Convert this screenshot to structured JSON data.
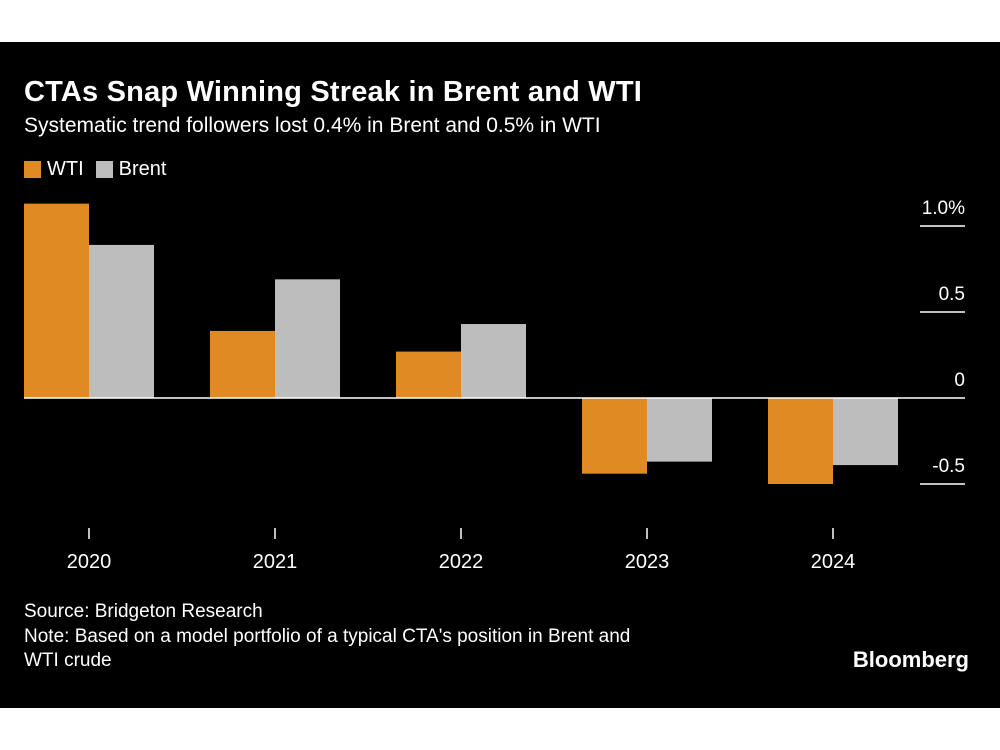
{
  "title": "CTAs Snap Winning Streak in Brent and WTI",
  "subtitle": "Systematic trend followers lost 0.4% in Brent and 0.5% in WTI",
  "source": "Source: Bridgeton Research",
  "note_line1": "Note: Based on a model portfolio of a typical CTA's position in Brent and",
  "note_line2": "WTI crude",
  "logo": "Bloomberg",
  "colors": {
    "WTI": "#E08A23",
    "Brent": "#BDBDBD",
    "background": "#000000",
    "text": "#FFFFFF"
  },
  "chart_data": {
    "type": "bar",
    "title": "CTAs Snap Winning Streak in Brent and WTI",
    "categories": [
      "2020",
      "2021",
      "2022",
      "2023",
      "2024"
    ],
    "series": [
      {
        "name": "WTI",
        "values": [
          1.13,
          0.39,
          0.27,
          -0.44,
          -0.5
        ]
      },
      {
        "name": "Brent",
        "values": [
          0.89,
          0.69,
          0.43,
          -0.37,
          -0.39
        ]
      }
    ],
    "yticks": [
      1.0,
      0.5,
      0,
      -0.5
    ],
    "ytick_labels": [
      "1.0%",
      "0.5",
      "0",
      "-0.5"
    ],
    "ylim": [
      -0.6,
      1.15
    ],
    "xlabel": "",
    "ylabel": "",
    "legend_position": "top-left",
    "axis_side": "right"
  }
}
